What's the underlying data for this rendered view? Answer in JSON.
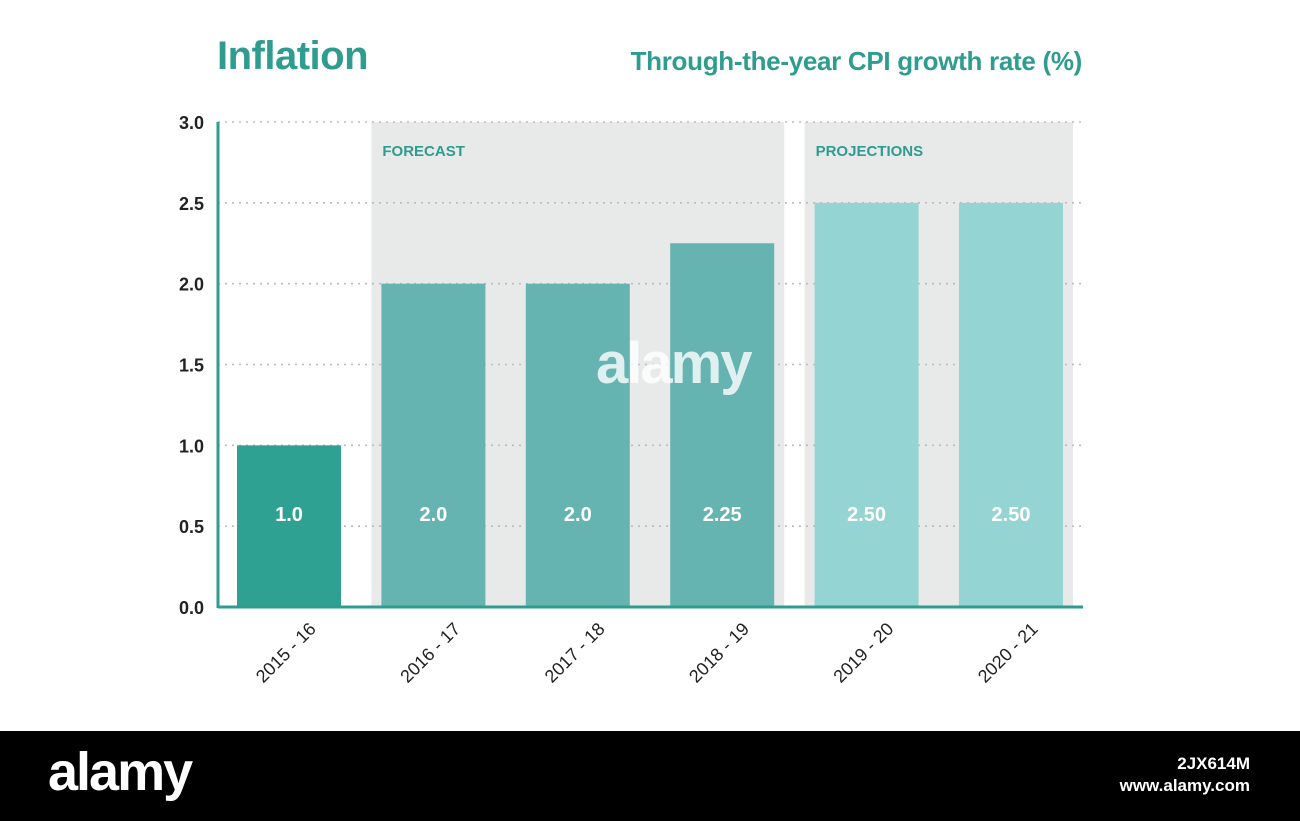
{
  "chart_data": {
    "type": "bar",
    "title": "Inflation",
    "subtitle": "Through-the-year CPI growth rate (%)",
    "categories": [
      "2015 - 16",
      "2016 - 17",
      "2017 - 18",
      "2018 - 19",
      "2019 - 20",
      "2020 - 21"
    ],
    "values": [
      1.0,
      2.0,
      2.0,
      2.25,
      2.5,
      2.5
    ],
    "data_labels": [
      "1.0",
      "2.0",
      "2.0",
      "2.25",
      "2.50",
      "2.50"
    ],
    "segments": [
      "actual",
      "forecast",
      "forecast",
      "forecast",
      "projection",
      "projection"
    ],
    "ylim": [
      0,
      3.0
    ],
    "yticks": [
      "0.0",
      "0.5",
      "1.0",
      "1.5",
      "2.0",
      "2.5",
      "3.0"
    ],
    "ytick_values": [
      0,
      0.5,
      1.0,
      1.5,
      2.0,
      2.5,
      3.0
    ],
    "regions": [
      {
        "label": "FORECAST",
        "from": 1,
        "to": 3
      },
      {
        "label": "PROJECTIONS",
        "from": 4,
        "to": 5
      }
    ],
    "grid": true,
    "xlabel": "",
    "ylabel": ""
  },
  "colors": {
    "accent": "#2e9c8e",
    "actual_bar": "#2fa193",
    "forecast_bar": "#66b4b2",
    "projection_bar": "#94d4d3",
    "region_bg": "#e8e9e9",
    "gridline": "#bbbbbb",
    "axis_text": "#222222"
  },
  "watermark": {
    "center": "alamy",
    "logo": "alamy",
    "image_id": "2JX614M",
    "url": "www.alamy.com"
  }
}
